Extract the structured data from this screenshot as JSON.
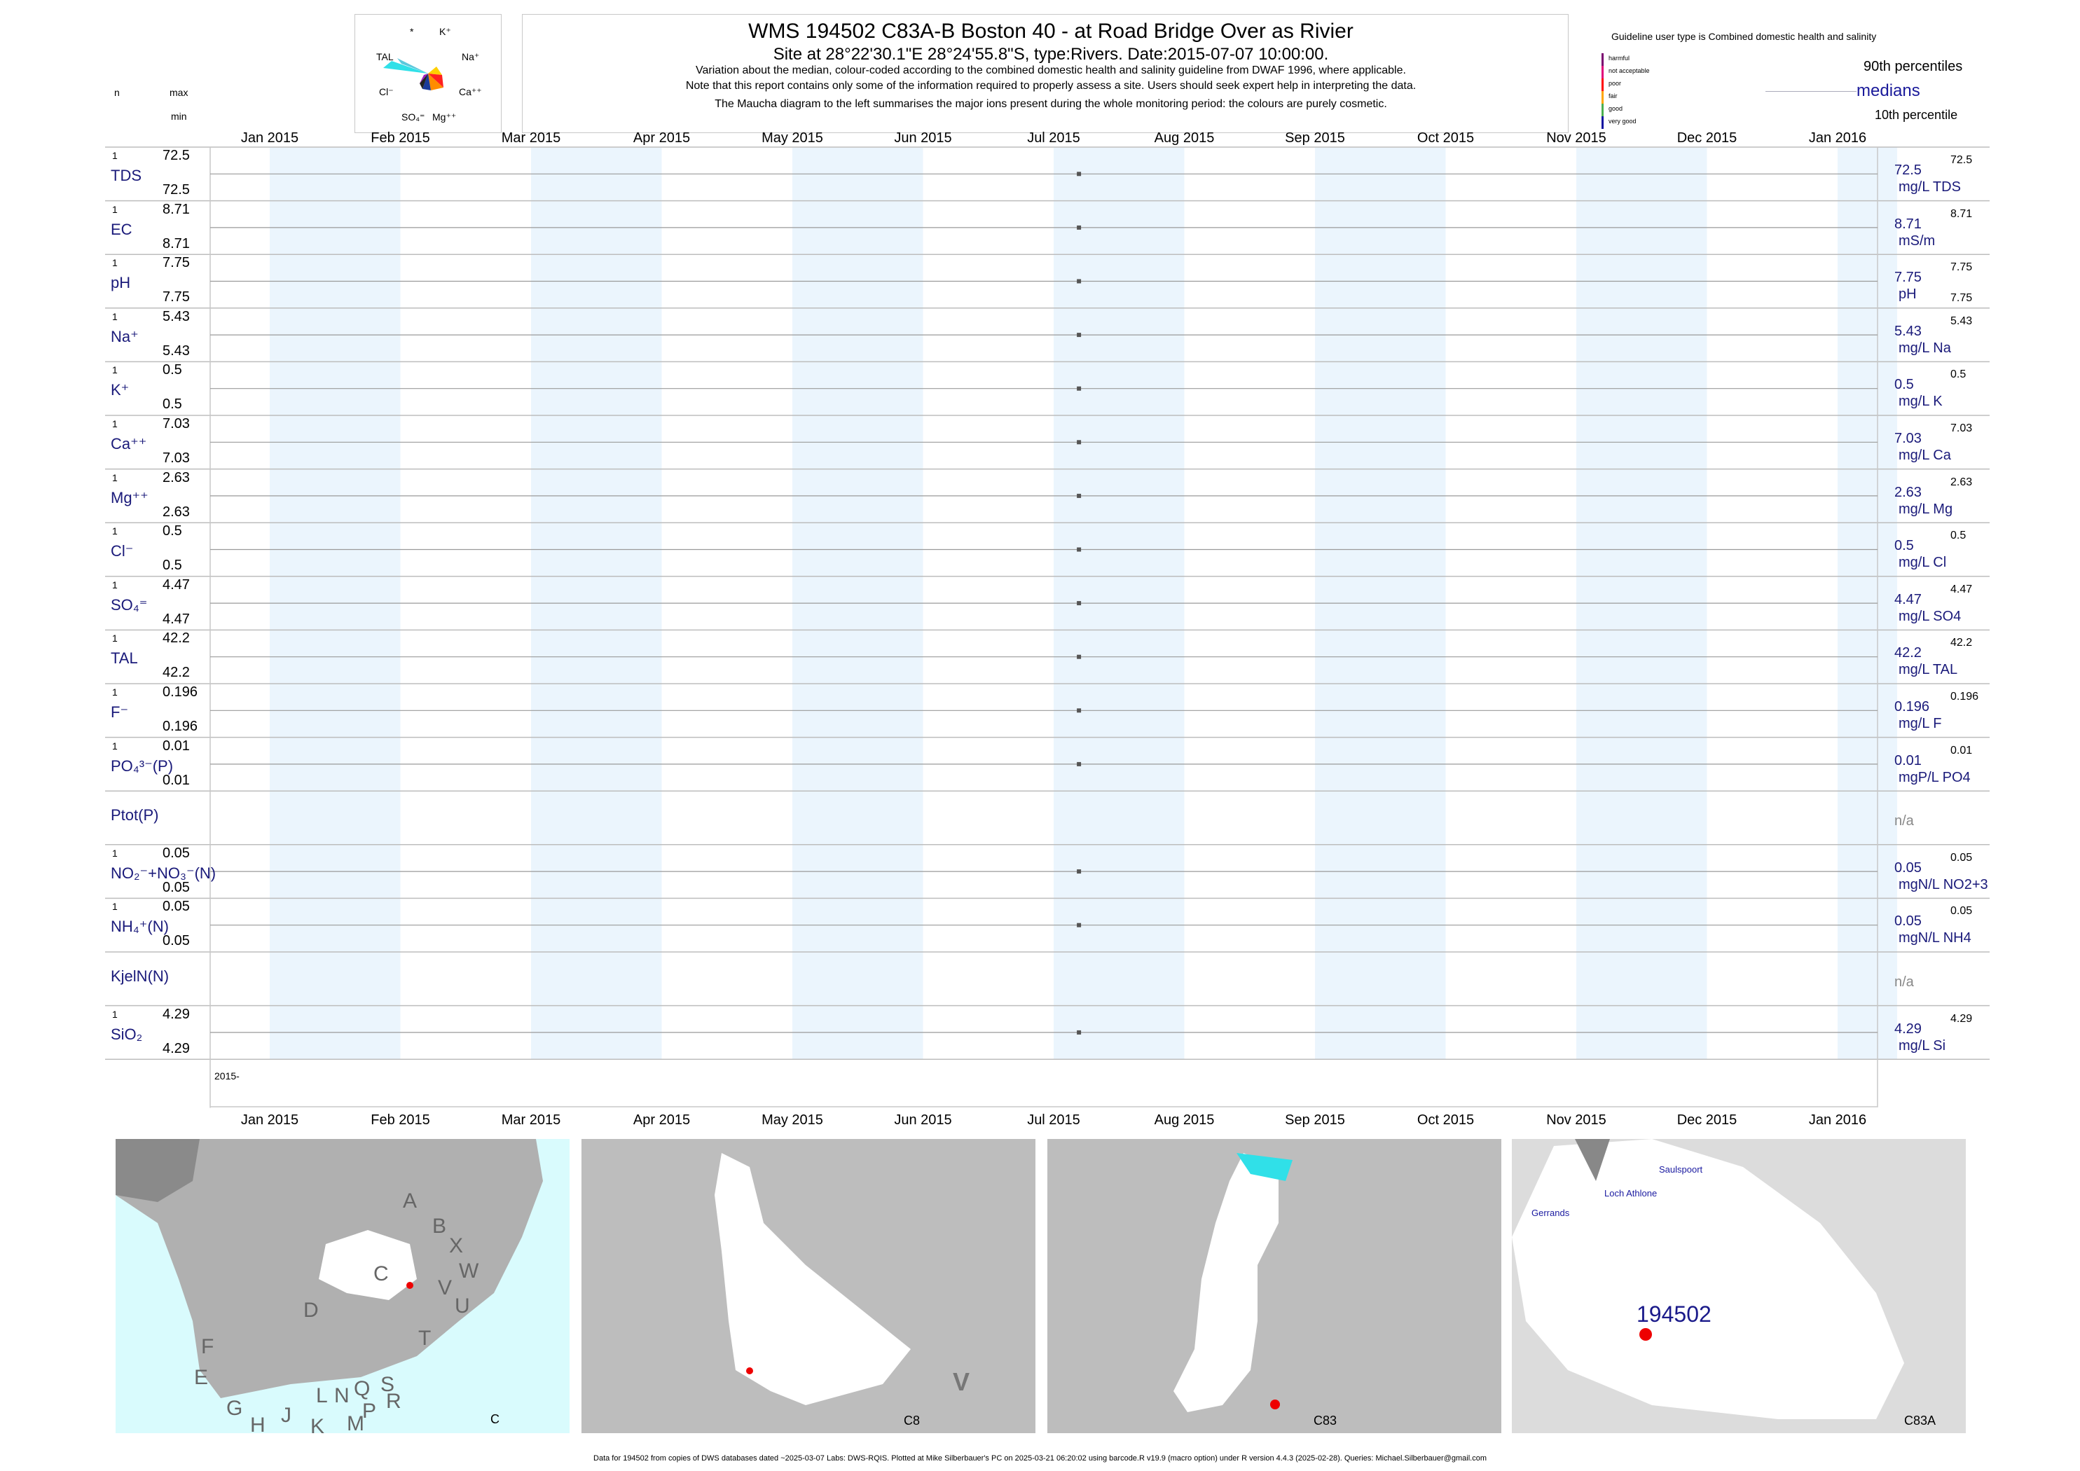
{
  "header": {
    "title": "WMS 194502  C83A-B Boston 40 - at Road Bridge Over as Rivier",
    "subtitle": "Site at 28°22'30.1\"E 28°24'55.8\"S, type:Rivers. Date:2015-07-07 10:00:00.",
    "note1": "Variation about the median,  colour-coded according to the combined domestic health and salinity guideline from DWAF 1996, where applicable.",
    "note2": "Note that this report contains only some of the information required to properly assess a site. Users should seek expert help in interpreting the data.",
    "note3": "The Maucha diagram to the left summarises the major ions present during the whole monitoring period: the colours are purely cosmetic."
  },
  "left_header": {
    "n": "n",
    "max": "max",
    "min": "min"
  },
  "maucha": {
    "labels": [
      "*",
      "K⁺",
      "TAL",
      "Na⁺",
      "Cl⁻",
      "Ca⁺⁺",
      "SO₄⁼",
      "Mg⁺⁺"
    ]
  },
  "guideline": {
    "title": "Guideline user type is Combined domestic health and salinity",
    "classes": [
      "harmful",
      "not acceptable",
      "poor",
      "fair",
      "good",
      "very good"
    ],
    "class_colors": [
      "#7a0070",
      "#e0007a",
      "#ff0000",
      "#ffa500",
      "#4caf50",
      "#1010a0"
    ],
    "p90": "90th percentiles",
    "medians": "medians",
    "p10": "10th percentile"
  },
  "chart_data": {
    "type": "scatter",
    "months": [
      "Jan 2015",
      "Feb 2015",
      "Mar 2015",
      "Apr 2015",
      "May 2015",
      "Jun 2015",
      "Jul 2015",
      "Aug 2015",
      "Sep 2015",
      "Oct 2015",
      "Nov 2015",
      "Dec 2015",
      "Jan 2016"
    ],
    "year_label": "2015-",
    "sample_date": "2015-07-07",
    "series": [
      {
        "label": "TDS",
        "n": "1",
        "max": "72.5",
        "min": "72.5",
        "median": "72.5",
        "unit": "mg/L TDS",
        "p90": "72.5",
        "p10": "",
        "value": 72.5
      },
      {
        "label": "EC",
        "n": "1",
        "max": "8.71",
        "min": "8.71",
        "median": "8.71",
        "unit": "mS/m",
        "p90": "8.71",
        "p10": "",
        "value": 8.71
      },
      {
        "label": "pH",
        "n": "1",
        "max": "7.75",
        "min": "7.75",
        "median": "7.75",
        "unit": "pH",
        "p90": "7.75",
        "p10": "7.75",
        "value": 7.75
      },
      {
        "label": "Na⁺",
        "n": "1",
        "max": "5.43",
        "min": "5.43",
        "median": "5.43",
        "unit": "mg/L Na",
        "p90": "5.43",
        "p10": "",
        "value": 5.43
      },
      {
        "label": "K⁺",
        "n": "1",
        "max": "0.5",
        "min": "0.5",
        "median": "0.5",
        "unit": "mg/L K",
        "p90": "0.5",
        "p10": "",
        "value": 0.5
      },
      {
        "label": "Ca⁺⁺",
        "n": "1",
        "max": "7.03",
        "min": "7.03",
        "median": "7.03",
        "unit": "mg/L Ca",
        "p90": "7.03",
        "p10": "",
        "value": 7.03
      },
      {
        "label": "Mg⁺⁺",
        "n": "1",
        "max": "2.63",
        "min": "2.63",
        "median": "2.63",
        "unit": "mg/L Mg",
        "p90": "2.63",
        "p10": "",
        "value": 2.63
      },
      {
        "label": "Cl⁻",
        "n": "1",
        "max": "0.5",
        "min": "0.5",
        "median": "0.5",
        "unit": "mg/L Cl",
        "p90": "0.5",
        "p10": "",
        "value": 0.5
      },
      {
        "label": "SO₄⁼",
        "n": "1",
        "max": "4.47",
        "min": "4.47",
        "median": "4.47",
        "unit": "mg/L SO4",
        "p90": "4.47",
        "p10": "",
        "value": 4.47
      },
      {
        "label": "TAL",
        "n": "1",
        "max": "42.2",
        "min": "42.2",
        "median": "42.2",
        "unit": "mg/L TAL",
        "p90": "42.2",
        "p10": "",
        "value": 42.2
      },
      {
        "label": "F⁻",
        "n": "1",
        "max": "0.196",
        "min": "0.196",
        "median": "0.196",
        "unit": "mg/L F",
        "p90": "0.196",
        "p10": "",
        "value": 0.196
      },
      {
        "label": "PO₄³⁻(P)",
        "n": "1",
        "max": "0.01",
        "min": "0.01",
        "median": "0.01",
        "unit": "mgP/L PO4",
        "p90": "0.01",
        "p10": "",
        "value": 0.01
      },
      {
        "label": "Ptot(P)",
        "n": "",
        "max": "",
        "min": "",
        "median": "n/a",
        "unit": "",
        "p90": "",
        "p10": "",
        "value": null
      },
      {
        "label": "NO₂⁻+NO₃⁻(N)",
        "n": "1",
        "max": "0.05",
        "min": "0.05",
        "median": "0.05",
        "unit": "mgN/L NO2+3",
        "p90": "0.05",
        "p10": "",
        "value": 0.05
      },
      {
        "label": "NH₄⁺(N)",
        "n": "1",
        "max": "0.05",
        "min": "0.05",
        "median": "0.05",
        "unit": "mgN/L NH4",
        "p90": "0.05",
        "p10": "",
        "value": 0.05
      },
      {
        "label": "KjelN(N)",
        "n": "",
        "max": "",
        "min": "",
        "median": "n/a",
        "unit": "",
        "p90": "",
        "p10": "",
        "value": null
      },
      {
        "label": "SiO₂",
        "n": "1",
        "max": "4.29",
        "min": "4.29",
        "median": "4.29",
        "unit": "mg/L Si",
        "p90": "4.29",
        "p10": "",
        "value": 4.29
      }
    ]
  },
  "maps": {
    "map1": {
      "corner": "C",
      "letters": [
        "A",
        "B",
        "X",
        "W",
        "C",
        "V",
        "U",
        "D",
        "T",
        "F",
        "E",
        "S",
        "Q",
        "R",
        "L",
        "N",
        "P",
        "M",
        "K",
        "J",
        "G",
        "H"
      ]
    },
    "map2": {
      "corner": "C8",
      "big": "V"
    },
    "map3": {
      "corner": "C83"
    },
    "map4": {
      "corner": "C83A",
      "site": "194502",
      "places": [
        "Saulspoort",
        "Loch Athlone",
        "Gerrands"
      ]
    }
  },
  "footer": "Data for 194502 from copies of DWS databases dated ~2025-03-07 Labs: DWS-RQIS. Plotted at Mike Silberbauer's PC on 2025-03-21 06:20:02 using barcode.R v19.9 (macro option) under R version 4.4.3 (2025-02-28). Queries: Michael.Silberbauer@gmail.com"
}
